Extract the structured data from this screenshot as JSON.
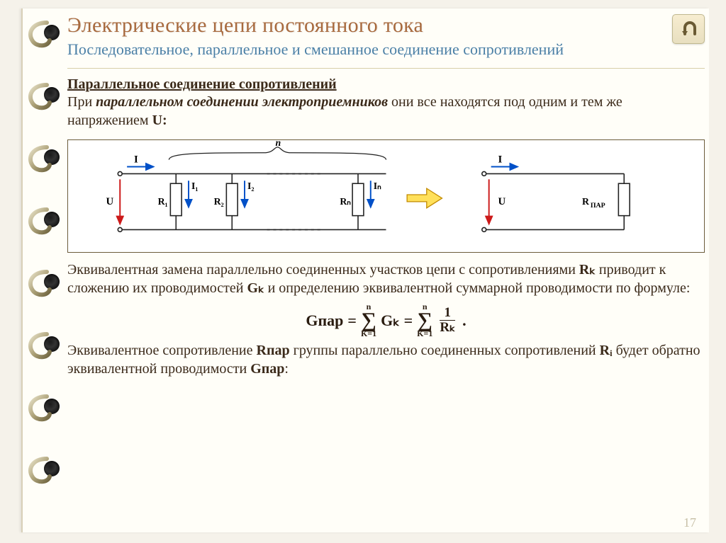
{
  "page_number": "17",
  "colors": {
    "page_bg": "#fffef8",
    "title": "#a86a3e",
    "subtitle": "#4a7fa5",
    "body": "#3b2a1a",
    "rule": "#d8cfa8",
    "diagram_border": "#6b5c3a",
    "page_num": "#c7bfa6",
    "arrow_blue": "#0050c8",
    "arrow_red": "#cc1a1a",
    "circuit_line": "#222",
    "big_arrow_fill": "#ffe05a",
    "big_arrow_stroke": "#c28a00"
  },
  "title": "Электрические цепи постоянного тока",
  "subtitle": "Последовательное, параллельное и смешанное соединение сопротивлений",
  "section_heading": "Параллельное соединение сопротивлений",
  "para1_a": "При ",
  "para1_i": "параллельном соединении электроприемников",
  "para1_b": " они все находятся под одним и тем же напряжением ",
  "para1_u": "U:",
  "diagram": {
    "n_brace_label": "n",
    "labels": {
      "I": "I",
      "U": "U",
      "R1": "R₁",
      "I1": "I₁",
      "R2": "R₂",
      "I2": "I₂",
      "Rn": "Rₙ",
      "In": "Iₙ",
      "Rpar": "RПАР"
    }
  },
  "para2": "Эквивалентная замена параллельно соединенных участков цепи с сопротивлениями ",
  "para2_Rk": "Rₖ",
  "para2_b": " приводит к сложению их проводимостей ",
  "para2_Gk": "Gₖ",
  "para2_c": " и определению эквивалентной суммарной проводимости по формуле:",
  "formula": {
    "Gpar": "Gпар",
    "equals": "=",
    "upper": "n",
    "lower": "K=1",
    "Gk": "Gₖ",
    "one": "1",
    "Rk": "Rₖ",
    "dot": "."
  },
  "para3_a": "Эквивалентное сопротивление ",
  "para3_Rpar": "Rпар",
  "para3_b": " группы параллельно соединенных сопротивлений ",
  "para3_Ri": "Rᵢ",
  "para3_c": " будет обратно эквивалентной проводимости ",
  "para3_Gpar": "Gпар",
  "para3_d": ":"
}
